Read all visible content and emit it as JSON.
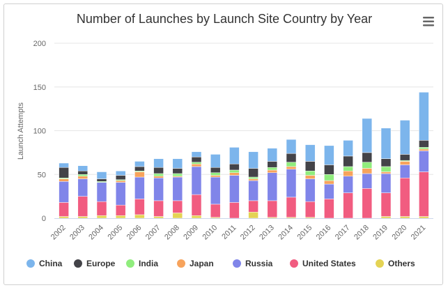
{
  "chart_data": {
    "type": "bar",
    "stacked": true,
    "title": "Number of Launches by Launch Site Country by Year",
    "ylabel": "Launch Attempts",
    "xlabel": "",
    "ylim": [
      0,
      200
    ],
    "yticks": [
      0,
      50,
      100,
      150,
      200
    ],
    "grid": true,
    "legend_position": "bottom",
    "categories": [
      "2002",
      "2003",
      "2004",
      "2005",
      "2006",
      "2007",
      "2008",
      "2009",
      "2010",
      "2011",
      "2012",
      "2013",
      "2014",
      "2015",
      "2016",
      "2017",
      "2018",
      "2019",
      "2020",
      "2021"
    ],
    "series": [
      {
        "name": "Others",
        "color": "#e4d354",
        "values": [
          2,
          2,
          3,
          3,
          4,
          2,
          6,
          3,
          1,
          0,
          7,
          1,
          1,
          1,
          0,
          0,
          0,
          2,
          2,
          2
        ]
      },
      {
        "name": "United States",
        "color": "#f15c80",
        "values": [
          16,
          23,
          16,
          12,
          18,
          18,
          14,
          24,
          15,
          18,
          13,
          19,
          23,
          18,
          22,
          29,
          34,
          27,
          44,
          51
        ]
      },
      {
        "name": "Russia",
        "color": "#8085e9",
        "values": [
          24,
          20,
          22,
          26,
          25,
          26,
          27,
          32,
          31,
          31,
          23,
          32,
          32,
          26,
          17,
          19,
          17,
          22,
          15,
          24
        ]
      },
      {
        "name": "Japan",
        "color": "#f7a35c",
        "values": [
          3,
          3,
          0,
          2,
          6,
          2,
          1,
          3,
          2,
          3,
          2,
          3,
          3,
          4,
          4,
          6,
          6,
          2,
          4,
          2
        ]
      },
      {
        "name": "India",
        "color": "#90ed7d",
        "values": [
          1,
          2,
          1,
          1,
          1,
          3,
          3,
          2,
          3,
          3,
          2,
          3,
          5,
          5,
          7,
          5,
          7,
          6,
          1,
          2
        ]
      },
      {
        "name": "Europe",
        "color": "#434348",
        "values": [
          12,
          4,
          3,
          5,
          5,
          7,
          6,
          6,
          6,
          7,
          10,
          7,
          10,
          11,
          11,
          12,
          11,
          9,
          7,
          8
        ]
      },
      {
        "name": "China",
        "color": "#7cb5ec",
        "values": [
          5,
          6,
          8,
          5,
          6,
          10,
          11,
          6,
          15,
          19,
          19,
          15,
          16,
          19,
          22,
          18,
          39,
          35,
          39,
          55
        ]
      }
    ]
  },
  "legend": [
    {
      "name": "China",
      "color": "#7cb5ec"
    },
    {
      "name": "Europe",
      "color": "#434348"
    },
    {
      "name": "India",
      "color": "#90ed7d"
    },
    {
      "name": "Japan",
      "color": "#f7a35c"
    },
    {
      "name": "Russia",
      "color": "#8085e9"
    },
    {
      "name": "United States",
      "color": "#f15c80"
    },
    {
      "name": "Others",
      "color": "#e4d354"
    }
  ],
  "menu_icon": "hamburger-menu-icon",
  "styles": {
    "gridColor": "#e6e6e6",
    "axisTextColor": "#666666",
    "titleColor": "#333333"
  }
}
